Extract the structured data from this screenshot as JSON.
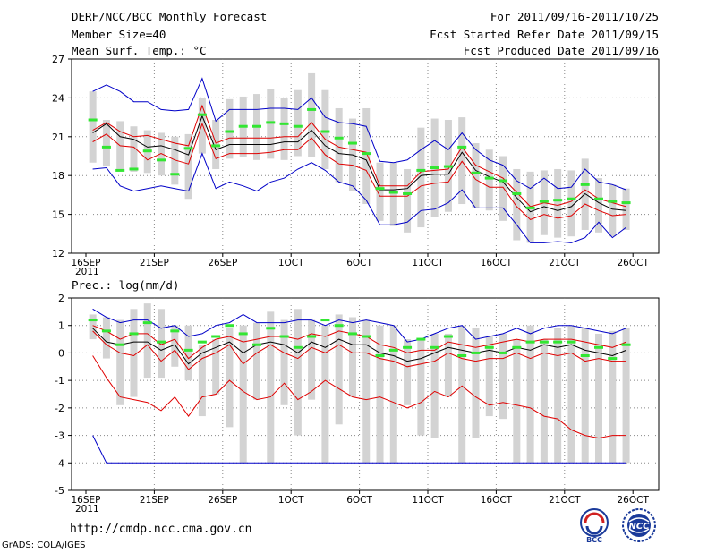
{
  "header": {
    "left_line1": "DERF/NCC/BCC Monthly Forecast",
    "left_line2": "Member Size=40",
    "left_line3": "Mean Surf. Temp.: °C",
    "right_line1": "For 2011/09/16-2011/10/25",
    "right_line2": "Fcst Started Refer Date 2011/09/15",
    "right_line3": "Fcst Produced Date 2011/09/16"
  },
  "footer": {
    "url": "http://cmdp.ncc.cma.gov.cn",
    "grads": "GrADS: COLA/IGES",
    "logo_bcc": "BCC",
    "logo_ncc": "NCC"
  },
  "colors": {
    "bar": "#d3d3d3",
    "mean": "#000000",
    "inner": "#e00000",
    "outer": "#0000c8",
    "green": "#32e632"
  },
  "chart_data": [
    {
      "type": "line",
      "title": "Mean Surf. Temp.: °C",
      "ylim": [
        12,
        27
      ],
      "yticks": [
        "12",
        "15",
        "18",
        "21",
        "24",
        "27"
      ],
      "xticks": [
        "16SEP",
        "21SEP",
        "26SEP",
        "1OCT",
        "6OCT",
        "11OCT",
        "16OCT",
        "21OCT",
        "26OCT"
      ],
      "xtick_year": "2011",
      "xtick_days": [
        0,
        5,
        10,
        15,
        20,
        25,
        30,
        35,
        40
      ],
      "days": 40,
      "bars": [
        [
          19.0,
          24.5
        ],
        [
          18.7,
          22.3
        ],
        [
          18.5,
          22.2
        ],
        [
          18.3,
          21.8
        ],
        [
          18.2,
          21.5
        ],
        [
          18.0,
          21.3
        ],
        [
          17.3,
          21.0
        ],
        [
          16.2,
          21.2
        ],
        [
          19.7,
          24.0
        ],
        [
          18.5,
          22.3
        ],
        [
          19.3,
          23.9
        ],
        [
          19.4,
          24.1
        ],
        [
          19.2,
          24.3
        ],
        [
          19.3,
          24.7
        ],
        [
          19.2,
          24.0
        ],
        [
          19.5,
          24.6
        ],
        [
          19.4,
          25.9
        ],
        [
          18.5,
          24.6
        ],
        [
          17.5,
          23.2
        ],
        [
          16.8,
          22.4
        ],
        [
          15.8,
          23.2
        ],
        [
          14.5,
          19.0
        ],
        [
          14.1,
          19.0
        ],
        [
          13.6,
          18.5
        ],
        [
          14.0,
          21.7
        ],
        [
          14.8,
          22.4
        ],
        [
          15.2,
          22.3
        ],
        [
          15.8,
          22.5
        ],
        [
          15.5,
          20.5
        ],
        [
          15.3,
          20.0
        ],
        [
          14.5,
          19.5
        ],
        [
          13.0,
          18.5
        ],
        [
          12.8,
          18.3
        ],
        [
          13.4,
          18.4
        ],
        [
          13.2,
          18.5
        ],
        [
          13.3,
          18.4
        ],
        [
          13.8,
          19.3
        ],
        [
          13.6,
          17.8
        ],
        [
          13.3,
          17.3
        ],
        [
          13.8,
          17.0
        ]
      ],
      "green": [
        22.3,
        20.2,
        18.4,
        18.5,
        19.9,
        19.2,
        18.1,
        20.1,
        22.7,
        20.3,
        21.4,
        21.8,
        21.8,
        22.1,
        22.0,
        21.8,
        23.1,
        21.4,
        20.9,
        20.5,
        19.7,
        17.0,
        16.7,
        16.6,
        18.4,
        18.6,
        18.7,
        20.2,
        18.2,
        17.8,
        17.6,
        16.6,
        15.5,
        16.0,
        16.1,
        16.2,
        17.3,
        16.2,
        16.0,
        15.9
      ],
      "series": [
        {
          "name": "outer-upper",
          "values": [
            24.5,
            25.0,
            24.5,
            23.7,
            23.7,
            23.1,
            23.0,
            23.1,
            25.5,
            22.2,
            23.1,
            23.1,
            23.1,
            23.2,
            23.2,
            23.1,
            24.0,
            22.5,
            22.1,
            22.0,
            21.8,
            19.1,
            19.0,
            19.2,
            20.0,
            20.7,
            20.0,
            21.3,
            20.0,
            19.2,
            18.8,
            17.6,
            17.0,
            17.8,
            17.0,
            17.1,
            18.5,
            17.5,
            17.3,
            16.9
          ]
        },
        {
          "name": "inner-upper",
          "values": [
            21.5,
            22.1,
            21.4,
            21.0,
            21.1,
            20.8,
            20.5,
            20.3,
            23.4,
            20.5,
            20.9,
            20.9,
            20.9,
            20.9,
            21.0,
            21.0,
            22.1,
            20.8,
            20.2,
            20.0,
            19.8,
            17.2,
            17.2,
            17.2,
            18.3,
            18.4,
            18.5,
            20.2,
            18.8,
            18.3,
            17.8,
            16.7,
            15.6,
            15.9,
            15.7,
            16.0,
            16.9,
            16.2,
            15.9,
            15.6
          ]
        },
        {
          "name": "mean",
          "values": [
            21.3,
            22.0,
            21.0,
            20.8,
            20.2,
            20.3,
            20.0,
            19.6,
            22.6,
            20.0,
            20.4,
            20.4,
            20.4,
            20.4,
            20.6,
            20.6,
            21.5,
            20.3,
            19.7,
            19.6,
            19.2,
            16.9,
            16.9,
            17.0,
            18.0,
            18.1,
            18.1,
            19.8,
            18.4,
            17.9,
            17.5,
            16.3,
            15.2,
            15.6,
            15.3,
            15.6,
            16.6,
            15.9,
            15.4,
            15.3
          ]
        },
        {
          "name": "inner-lower",
          "values": [
            20.6,
            21.2,
            20.3,
            20.2,
            19.2,
            19.7,
            19.2,
            18.9,
            22.0,
            19.3,
            19.7,
            19.7,
            19.7,
            19.8,
            20.0,
            20.0,
            20.9,
            19.6,
            18.9,
            18.8,
            18.4,
            16.4,
            16.4,
            16.4,
            17.2,
            17.4,
            17.5,
            19.1,
            17.7,
            17.1,
            17.1,
            15.6,
            14.6,
            15.0,
            14.7,
            14.9,
            15.8,
            15.3,
            14.9,
            15.0
          ]
        },
        {
          "name": "outer-lower",
          "values": [
            18.5,
            18.6,
            17.2,
            16.8,
            17.0,
            17.2,
            17.0,
            16.8,
            19.7,
            17.0,
            17.5,
            17.2,
            16.8,
            17.5,
            17.8,
            18.5,
            19.0,
            18.4,
            17.5,
            17.2,
            16.1,
            14.2,
            14.2,
            14.4,
            15.3,
            15.4,
            15.9,
            16.9,
            15.5,
            15.5,
            15.5,
            14.2,
            12.8,
            12.8,
            12.9,
            12.8,
            13.2,
            14.4,
            13.2,
            14.0
          ]
        }
      ]
    },
    {
      "type": "line",
      "title": "Prec.: log(mm/d)",
      "ylim": [
        -5,
        2
      ],
      "yticks": [
        "-5",
        "-4",
        "-3",
        "-2",
        "-1",
        "0",
        "1",
        "2"
      ],
      "xticks": [
        "16SEP",
        "21SEP",
        "26SEP",
        "1OCT",
        "6OCT",
        "11OCT",
        "16OCT",
        "21OCT",
        "26OCT"
      ],
      "xtick_year": "2011",
      "xtick_days": [
        0,
        5,
        10,
        15,
        20,
        25,
        30,
        35,
        40
      ],
      "days": 40,
      "bars": [
        [
          0.5,
          1.4
        ],
        [
          -0.2,
          1.3
        ],
        [
          -1.9,
          1.2
        ],
        [
          -1.6,
          1.6
        ],
        [
          -0.9,
          1.8
        ],
        [
          -0.9,
          1.6
        ],
        [
          -0.5,
          1.0
        ],
        [
          -1.0,
          1.0
        ],
        [
          -2.3,
          0.3
        ],
        [
          -1.5,
          0.5
        ],
        [
          -2.7,
          0.9
        ],
        [
          -4.0,
          1.0
        ],
        [
          -1.7,
          1.1
        ],
        [
          -4.0,
          1.5
        ],
        [
          -1.9,
          1.2
        ],
        [
          -3.0,
          1.6
        ],
        [
          -1.7,
          1.2
        ],
        [
          -4.0,
          1.0
        ],
        [
          -2.6,
          1.4
        ],
        [
          -1.6,
          1.3
        ],
        [
          -4.0,
          1.2
        ],
        [
          -4.0,
          1.0
        ],
        [
          -4.0,
          1.0
        ],
        [
          -1.9,
          0.5
        ],
        [
          -3.0,
          0.5
        ],
        [
          -3.1,
          0.7
        ],
        [
          -1.6,
          0.7
        ],
        [
          -4.0,
          1.0
        ],
        [
          -3.1,
          0.9
        ],
        [
          -2.3,
          0.6
        ],
        [
          -2.4,
          0.7
        ],
        [
          -4.0,
          0.5
        ],
        [
          -4.0,
          1.0
        ],
        [
          -4.0,
          0.5
        ],
        [
          -4.0,
          0.9
        ],
        [
          -4.0,
          1.0
        ],
        [
          -4.0,
          0.9
        ],
        [
          -4.0,
          0.7
        ],
        [
          -4.0,
          0.8
        ],
        [
          -4.0,
          0.9
        ]
      ],
      "green": [
        1.2,
        0.8,
        0.3,
        0.7,
        1.1,
        0.4,
        0.8,
        0.1,
        0.4,
        0.6,
        1.0,
        0.7,
        0.3,
        0.9,
        0.6,
        0.2,
        0.6,
        1.2,
        1.0,
        0.7,
        0.6,
        -0.1,
        0.1,
        0.2,
        0.5,
        0.2,
        0.6,
        -0.1,
        0.0,
        0.2,
        0.0,
        0.2,
        0.4,
        0.4,
        0.4,
        0.4,
        -0.1,
        0.2,
        -0.2,
        0.3
      ],
      "series": [
        {
          "name": "outer-upper",
          "values": [
            1.6,
            1.3,
            1.1,
            1.2,
            1.2,
            0.9,
            1.0,
            0.6,
            0.7,
            1.0,
            1.1,
            1.4,
            1.1,
            1.1,
            1.1,
            1.2,
            1.2,
            1.0,
            1.2,
            1.1,
            1.2,
            1.1,
            1.0,
            0.4,
            0.5,
            0.7,
            0.9,
            1.0,
            0.5,
            0.6,
            0.7,
            0.9,
            0.7,
            0.9,
            1.0,
            1.0,
            0.9,
            0.8,
            0.7,
            0.9
          ]
        },
        {
          "name": "inner-upper",
          "values": [
            1.0,
            0.8,
            0.5,
            0.7,
            0.7,
            0.3,
            0.5,
            -0.2,
            0.2,
            0.5,
            0.6,
            0.4,
            0.5,
            0.6,
            0.6,
            0.5,
            0.7,
            0.6,
            0.8,
            0.7,
            0.6,
            0.3,
            0.2,
            0.0,
            0.1,
            0.1,
            0.4,
            0.3,
            0.2,
            0.3,
            0.4,
            0.5,
            0.4,
            0.5,
            0.5,
            0.5,
            0.4,
            0.3,
            0.2,
            0.4
          ]
        },
        {
          "name": "mean",
          "values": [
            0.9,
            0.4,
            0.3,
            0.4,
            0.4,
            0.1,
            0.3,
            -0.4,
            0.0,
            0.2,
            0.4,
            0.0,
            0.3,
            0.4,
            0.3,
            0.0,
            0.4,
            0.2,
            0.5,
            0.3,
            0.3,
            0.0,
            -0.1,
            -0.3,
            -0.2,
            0.0,
            0.2,
            0.1,
            0.0,
            0.1,
            0.0,
            0.2,
            0.1,
            0.3,
            0.2,
            0.3,
            0.1,
            0.0,
            -0.1,
            0.1
          ]
        },
        {
          "name": "inner-lower",
          "values": [
            0.8,
            0.3,
            0.0,
            -0.1,
            0.3,
            -0.3,
            0.1,
            -0.6,
            -0.2,
            0.0,
            0.3,
            -0.4,
            0.0,
            0.3,
            0.0,
            -0.2,
            0.2,
            0.0,
            0.3,
            0.0,
            0.0,
            -0.2,
            -0.3,
            -0.5,
            -0.4,
            -0.3,
            0.0,
            -0.2,
            -0.3,
            -0.2,
            -0.2,
            0.0,
            -0.2,
            0.0,
            -0.1,
            0.0,
            -0.3,
            -0.2,
            -0.3,
            -0.3
          ]
        },
        {
          "name": "outer-lower-red",
          "values": [
            -0.1,
            -0.9,
            -1.6,
            -1.7,
            -1.8,
            -2.1,
            -1.6,
            -2.3,
            -1.6,
            -1.5,
            -1.0,
            -1.4,
            -1.7,
            -1.6,
            -1.1,
            -1.7,
            -1.4,
            -1.0,
            -1.3,
            -1.6,
            -1.7,
            -1.6,
            -1.8,
            -2.0,
            -1.8,
            -1.4,
            -1.6,
            -1.2,
            -1.6,
            -1.9,
            -1.8,
            -1.9,
            -2.0,
            -2.3,
            -2.4,
            -2.8,
            -3.0,
            -3.1,
            -3.0,
            -3.0
          ]
        },
        {
          "name": "outer-lower-blue",
          "values": [
            -3.0,
            -4.0,
            -4.0,
            -4.0,
            -4.0,
            -4.0,
            -4.0,
            -4.0,
            -4.0,
            -4.0,
            -4.0,
            -4.0,
            -4.0,
            -4.0,
            -4.0,
            -4.0,
            -4.0,
            -4.0,
            -4.0,
            -4.0,
            -4.0,
            -4.0,
            -4.0,
            -4.0,
            -4.0,
            -4.0,
            -4.0,
            -4.0,
            -4.0,
            -4.0,
            -4.0,
            -4.0,
            -4.0,
            -4.0,
            -4.0,
            -4.0,
            -4.0,
            -4.0,
            -4.0,
            -4.0
          ]
        }
      ]
    }
  ]
}
